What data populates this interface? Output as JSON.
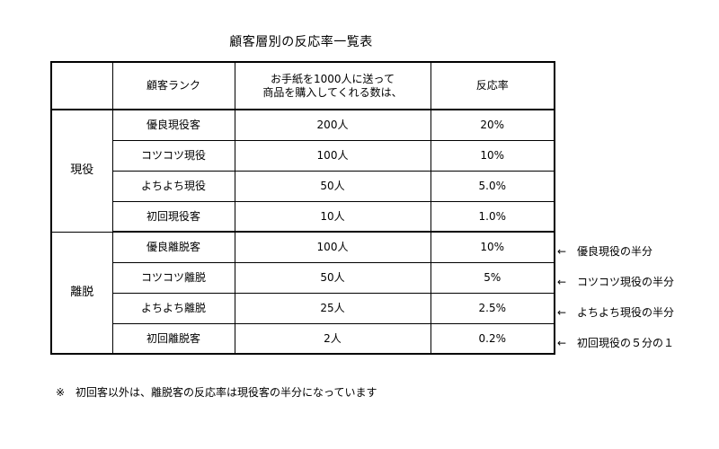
{
  "title": "顧客層別の反応率一覧表",
  "headers": {
    "blank": "",
    "rank": "顧客ランク",
    "count_line1": "お手紙を1000人に送って",
    "count_line2": "商品を購入してくれる数は、",
    "rate": "反応率"
  },
  "groups": [
    {
      "label": "現役",
      "rows": [
        {
          "rank": "優良現役客",
          "count": "200人",
          "rate": "20%"
        },
        {
          "rank": "コツコツ現役",
          "count": "100人",
          "rate": "10%"
        },
        {
          "rank": "よちよち現役",
          "count": "50人",
          "rate": "5.0%"
        },
        {
          "rank": "初回現役客",
          "count": "10人",
          "rate": "1.0%"
        }
      ]
    },
    {
      "label": "離脱",
      "rows": [
        {
          "rank": "優良離脱客",
          "count": "100人",
          "rate": "10%"
        },
        {
          "rank": "コツコツ離脱",
          "count": "50人",
          "rate": "5%"
        },
        {
          "rank": "よちよち離脱",
          "count": "25人",
          "rate": "2.5%"
        },
        {
          "rank": "初回離脱客",
          "count": "2人",
          "rate": "0.2%"
        }
      ]
    }
  ],
  "side_notes": [
    {
      "arrow": "←",
      "text": "優良現役の半分"
    },
    {
      "arrow": "←",
      "text": "コツコツ現役の半分"
    },
    {
      "arrow": "←",
      "text": "よちよち現役の半分"
    },
    {
      "arrow": "←",
      "text": "初回現役の５分の１"
    }
  ],
  "footnote": "※　初回客以外は、離脱客の反応率は現役客の半分になっています"
}
